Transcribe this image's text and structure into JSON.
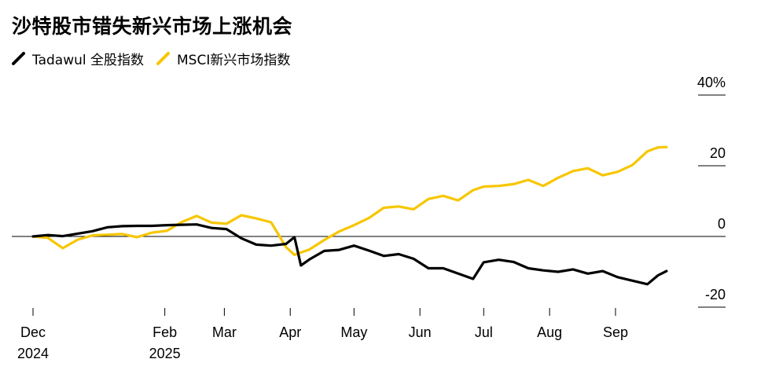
{
  "chart_data": {
    "type": "line",
    "title": "沙特股市错失新兴市场上涨机会",
    "ylim": [
      -20,
      40
    ],
    "y_ticks": [
      "40%",
      "20",
      "0",
      "-20"
    ],
    "y_tick_values": [
      40,
      20,
      0,
      -20
    ],
    "x_ticks": [
      {
        "label": "Dec",
        "sub": "2024",
        "date": "2024-12-01"
      },
      {
        "label": "Feb",
        "sub": "2025",
        "date": "2025-02-01"
      },
      {
        "label": "Mar",
        "sub": "",
        "date": "2025-03-01"
      },
      {
        "label": "Apr",
        "sub": "",
        "date": "2025-04-01"
      },
      {
        "label": "May",
        "sub": "",
        "date": "2025-05-01"
      },
      {
        "label": "Jun",
        "sub": "",
        "date": "2025-06-01"
      },
      {
        "label": "Jul",
        "sub": "",
        "date": "2025-07-01"
      },
      {
        "label": "Aug",
        "sub": "",
        "date": "2025-08-01"
      },
      {
        "label": "Sep",
        "sub": "",
        "date": "2025-09-01"
      }
    ],
    "legend_position": "top-left",
    "grid": false,
    "series": [
      {
        "name": "Tadawul 全股指数",
        "color": "#000000",
        "points": [
          [
            "2024-12-01",
            0.0
          ],
          [
            "2024-12-08",
            0.4
          ],
          [
            "2024-12-15",
            0.1
          ],
          [
            "2024-12-22",
            0.8
          ],
          [
            "2024-12-29",
            1.5
          ],
          [
            "2025-01-05",
            2.6
          ],
          [
            "2025-01-12",
            2.9
          ],
          [
            "2025-01-19",
            3.0
          ],
          [
            "2025-01-26",
            3.0
          ],
          [
            "2025-02-02",
            3.2
          ],
          [
            "2025-02-09",
            3.3
          ],
          [
            "2025-02-16",
            3.4
          ],
          [
            "2025-02-23",
            2.4
          ],
          [
            "2025-03-02",
            2.1
          ],
          [
            "2025-03-09",
            -0.5
          ],
          [
            "2025-03-16",
            -2.3
          ],
          [
            "2025-03-23",
            -2.6
          ],
          [
            "2025-03-30",
            -2.1
          ],
          [
            "2025-04-03",
            -0.2
          ],
          [
            "2025-04-06",
            -8.2
          ],
          [
            "2025-04-10",
            -6.5
          ],
          [
            "2025-04-17",
            -4.1
          ],
          [
            "2025-04-24",
            -3.8
          ],
          [
            "2025-05-01",
            -2.6
          ],
          [
            "2025-05-08",
            -4.0
          ],
          [
            "2025-05-15",
            -5.5
          ],
          [
            "2025-05-22",
            -5.0
          ],
          [
            "2025-05-29",
            -6.3
          ],
          [
            "2025-06-05",
            -9.0
          ],
          [
            "2025-06-12",
            -9.0
          ],
          [
            "2025-06-19",
            -10.5
          ],
          [
            "2025-06-26",
            -12.0
          ],
          [
            "2025-07-01",
            -7.3
          ],
          [
            "2025-07-08",
            -6.6
          ],
          [
            "2025-07-15",
            -7.2
          ],
          [
            "2025-07-22",
            -9.0
          ],
          [
            "2025-07-29",
            -9.6
          ],
          [
            "2025-08-05",
            -10.0
          ],
          [
            "2025-08-12",
            -9.3
          ],
          [
            "2025-08-19",
            -10.5
          ],
          [
            "2025-08-26",
            -9.8
          ],
          [
            "2025-09-02",
            -11.5
          ],
          [
            "2025-09-09",
            -12.5
          ],
          [
            "2025-09-16",
            -13.5
          ],
          [
            "2025-09-21",
            -11.0
          ],
          [
            "2025-09-25",
            -9.8
          ]
        ]
      },
      {
        "name": "MSCI新兴市场指数",
        "color": "#f7c600",
        "points": [
          [
            "2024-12-01",
            0.0
          ],
          [
            "2024-12-08",
            -0.4
          ],
          [
            "2024-12-15",
            -3.3
          ],
          [
            "2024-12-22",
            -0.9
          ],
          [
            "2024-12-29",
            0.3
          ],
          [
            "2025-01-05",
            0.5
          ],
          [
            "2025-01-12",
            0.7
          ],
          [
            "2025-01-19",
            -0.2
          ],
          [
            "2025-01-26",
            1.1
          ],
          [
            "2025-02-02",
            1.6
          ],
          [
            "2025-02-09",
            4.1
          ],
          [
            "2025-02-16",
            5.8
          ],
          [
            "2025-02-23",
            3.9
          ],
          [
            "2025-03-02",
            3.6
          ],
          [
            "2025-03-09",
            6.0
          ],
          [
            "2025-03-16",
            5.1
          ],
          [
            "2025-03-23",
            4.0
          ],
          [
            "2025-03-30",
            -3.0
          ],
          [
            "2025-04-03",
            -5.2
          ],
          [
            "2025-04-10",
            -3.7
          ],
          [
            "2025-04-17",
            -1.0
          ],
          [
            "2025-04-24",
            1.4
          ],
          [
            "2025-05-01",
            3.2
          ],
          [
            "2025-05-08",
            5.2
          ],
          [
            "2025-05-15",
            8.1
          ],
          [
            "2025-05-22",
            8.5
          ],
          [
            "2025-05-29",
            7.7
          ],
          [
            "2025-06-05",
            10.6
          ],
          [
            "2025-06-12",
            11.5
          ],
          [
            "2025-06-19",
            10.2
          ],
          [
            "2025-06-26",
            13.1
          ],
          [
            "2025-07-01",
            14.1
          ],
          [
            "2025-07-08",
            14.3
          ],
          [
            "2025-07-15",
            14.8
          ],
          [
            "2025-07-22",
            16.0
          ],
          [
            "2025-07-29",
            14.3
          ],
          [
            "2025-08-05",
            16.6
          ],
          [
            "2025-08-12",
            18.5
          ],
          [
            "2025-08-19",
            19.3
          ],
          [
            "2025-08-26",
            17.3
          ],
          [
            "2025-09-02",
            18.3
          ],
          [
            "2025-09-09",
            20.2
          ],
          [
            "2025-09-16",
            24.1
          ],
          [
            "2025-09-21",
            25.2
          ],
          [
            "2025-09-25",
            25.3
          ]
        ]
      }
    ]
  }
}
